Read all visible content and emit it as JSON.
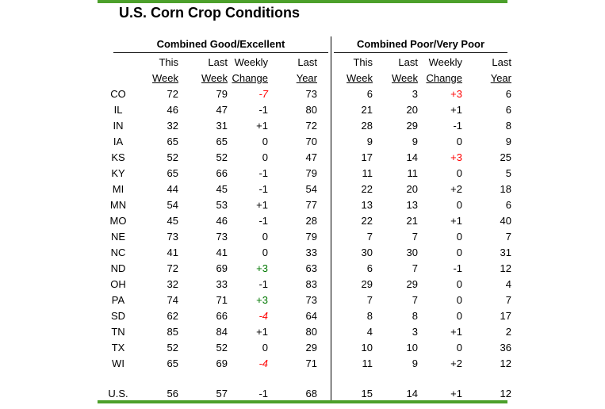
{
  "title": "U.S. Corn Crop Conditions",
  "colors": {
    "accent_line_green": "#4ca02b",
    "positive_highlight_green": "#007800",
    "negative_highlight_red": "#ff0000",
    "text": "#000000",
    "background": "#ffffff"
  },
  "columns": [
    {
      "line1": "This",
      "line2": "Week"
    },
    {
      "line1": "Last",
      "line2": "Week"
    },
    {
      "line1": "Weekly",
      "line2": "Change"
    },
    {
      "line1": "Last",
      "line2": "Year"
    }
  ],
  "states": [
    "CO",
    "IL",
    "IN",
    "IA",
    "KS",
    "KY",
    "MI",
    "MN",
    "MO",
    "NE",
    "NC",
    "ND",
    "OH",
    "PA",
    "SD",
    "TN",
    "TX",
    "WI"
  ],
  "total_label": "U.S.",
  "good_excellent": {
    "section_title": "Combined Good/Excellent",
    "rows": [
      [
        72,
        79,
        "-7",
        "ri",
        73
      ],
      [
        46,
        47,
        "-1",
        "n",
        80
      ],
      [
        32,
        31,
        "+1",
        "n",
        72
      ],
      [
        65,
        65,
        "0",
        "n",
        70
      ],
      [
        52,
        52,
        "0",
        "n",
        47
      ],
      [
        65,
        66,
        "-1",
        "n",
        79
      ],
      [
        44,
        45,
        "-1",
        "n",
        54
      ],
      [
        54,
        53,
        "+1",
        "n",
        77
      ],
      [
        45,
        46,
        "-1",
        "n",
        28
      ],
      [
        73,
        73,
        "0",
        "n",
        79
      ],
      [
        41,
        41,
        "0",
        "n",
        33
      ],
      [
        72,
        69,
        "+3",
        "g",
        63
      ],
      [
        32,
        33,
        "-1",
        "n",
        83
      ],
      [
        74,
        71,
        "+3",
        "g",
        73
      ],
      [
        62,
        66,
        "-4",
        "ri",
        64
      ],
      [
        85,
        84,
        "+1",
        "n",
        80
      ],
      [
        52,
        52,
        "0",
        "n",
        29
      ],
      [
        65,
        69,
        "-4",
        "ri",
        71
      ]
    ],
    "total": [
      56,
      57,
      "-1",
      "n",
      68
    ]
  },
  "poor_very_poor": {
    "section_title": "Combined Poor/Very Poor",
    "rows": [
      [
        6,
        3,
        "+3",
        "r",
        6
      ],
      [
        21,
        20,
        "+1",
        "n",
        6
      ],
      [
        28,
        29,
        "-1",
        "n",
        8
      ],
      [
        9,
        9,
        "0",
        "n",
        9
      ],
      [
        17,
        14,
        "+3",
        "r",
        25
      ],
      [
        11,
        11,
        "0",
        "n",
        5
      ],
      [
        22,
        20,
        "+2",
        "n",
        18
      ],
      [
        13,
        13,
        "0",
        "n",
        6
      ],
      [
        22,
        21,
        "+1",
        "n",
        40
      ],
      [
        7,
        7,
        "0",
        "n",
        7
      ],
      [
        30,
        30,
        "0",
        "n",
        31
      ],
      [
        6,
        7,
        "-1",
        "n",
        12
      ],
      [
        29,
        29,
        "0",
        "n",
        4
      ],
      [
        7,
        7,
        "0",
        "n",
        7
      ],
      [
        8,
        8,
        "0",
        "n",
        17
      ],
      [
        4,
        3,
        "+1",
        "n",
        2
      ],
      [
        10,
        10,
        "0",
        "n",
        36
      ],
      [
        11,
        9,
        "+2",
        "n",
        12
      ]
    ],
    "total": [
      15,
      14,
      "+1",
      "n",
      12
    ]
  }
}
